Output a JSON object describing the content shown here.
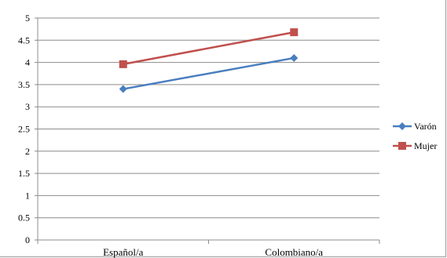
{
  "chart_data": {
    "type": "line",
    "categories": [
      "Español/a",
      "Colombiano/a"
    ],
    "series": [
      {
        "name": "Varón",
        "values": [
          3.4,
          4.1
        ],
        "color": "#4a7ebf",
        "marker": "diamond"
      },
      {
        "name": "Mujer",
        "values": [
          3.96,
          4.68
        ],
        "color": "#c0504d",
        "marker": "square"
      }
    ],
    "ylim": [
      0,
      5
    ],
    "yticks": [
      "0",
      "0.5",
      "1",
      "1.5",
      "2",
      "2.5",
      "3",
      "3.5",
      "4",
      "4.5",
      "5"
    ],
    "grid": true,
    "legend_position": "right"
  }
}
